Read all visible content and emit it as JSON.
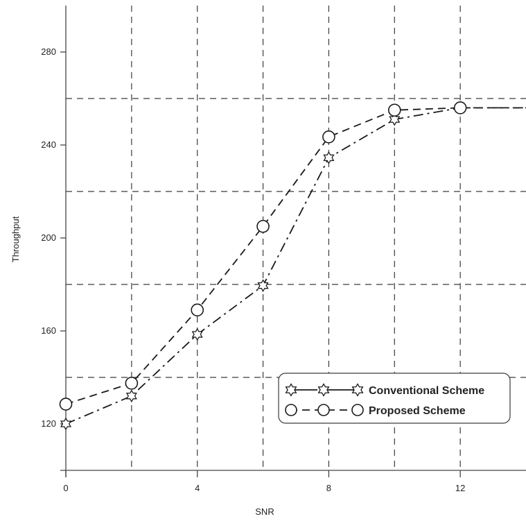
{
  "chart_data": {
    "type": "line",
    "xlabel": "SNR",
    "ylabel": "Throughput",
    "xlim": [
      0,
      14
    ],
    "ylim": [
      100,
      300
    ],
    "x_ticks": [
      0,
      4,
      8,
      12
    ],
    "y_ticks": [
      120,
      160,
      200,
      240,
      280
    ],
    "x_grid": [
      2,
      4,
      6,
      8,
      10,
      12
    ],
    "y_grid": [
      140,
      180,
      220,
      260
    ],
    "grid": true,
    "legend_position": "bottom-right",
    "series": [
      {
        "name": "Conventional Scheme",
        "marker": "star-of-david-icon",
        "line_style": "dash-dot",
        "x": [
          0,
          2,
          4,
          6,
          8,
          10,
          12,
          14
        ],
        "y": [
          120,
          132,
          158.5,
          179.5,
          234.5,
          251,
          256,
          256
        ]
      },
      {
        "name": "Proposed Scheme",
        "marker": "circle-icon",
        "line_style": "dashed",
        "x": [
          0,
          2,
          4,
          6,
          8,
          10,
          12,
          14
        ],
        "y": [
          128.5,
          137.5,
          169,
          205,
          243.5,
          255,
          256,
          256
        ]
      }
    ]
  }
}
